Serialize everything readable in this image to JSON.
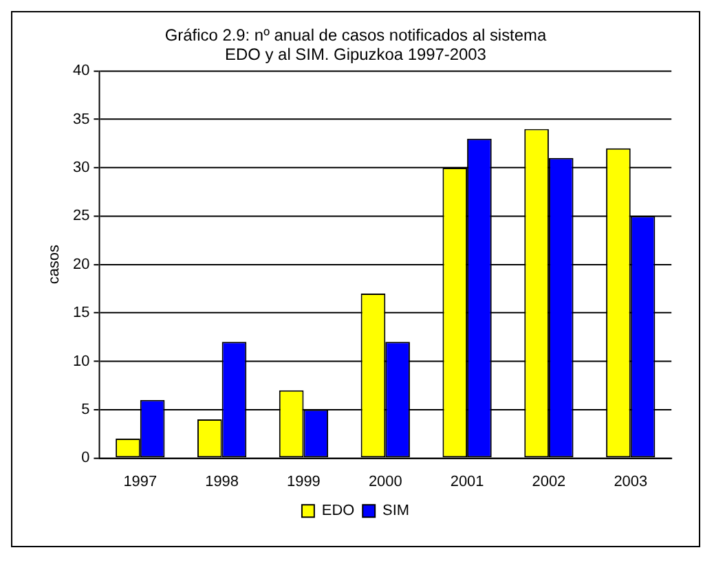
{
  "chart_data": {
    "type": "bar",
    "title": "Gráfico 2.9: nº anual de casos notificados al sistema EDO y al SIM. Gipuzkoa 1997-2003",
    "ylabel": "casos",
    "categories": [
      "1997",
      "1998",
      "1999",
      "2000",
      "2001",
      "2002",
      "2003"
    ],
    "series": [
      {
        "name": "EDO",
        "color": "#ffff00",
        "values": [
          2,
          4,
          7,
          17,
          30,
          34,
          32
        ]
      },
      {
        "name": "SIM",
        "color": "#0000ff",
        "values": [
          6,
          12,
          5,
          12,
          33,
          31,
          25
        ]
      }
    ],
    "ylim": [
      0,
      40
    ],
    "yticks": [
      0,
      5,
      10,
      15,
      20,
      25,
      30,
      35,
      40
    ],
    "grid": "y",
    "legend": "bottom"
  }
}
